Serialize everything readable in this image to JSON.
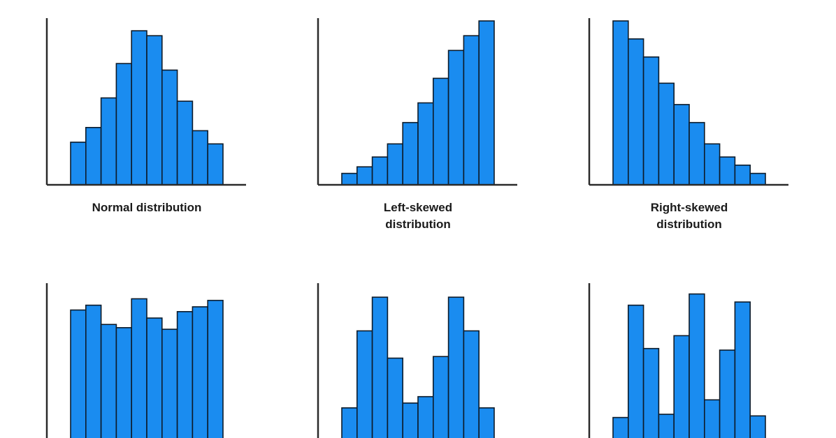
{
  "bar_color": "#1a8cf0",
  "bar_stroke": "#0d1b2a",
  "axis_color": "#2a2a2a",
  "chart_data": [
    {
      "type": "bar",
      "title_lines": [
        "Normal distribution"
      ],
      "values": [
        26,
        35,
        53,
        74,
        94,
        91,
        70,
        51,
        33,
        25
      ],
      "ylim": [
        0,
        100
      ]
    },
    {
      "type": "bar",
      "title_lines": [
        "Left-skewed",
        "distribution"
      ],
      "values": [
        7,
        11,
        17,
        25,
        38,
        50,
        65,
        82,
        91,
        100
      ],
      "ylim": [
        0,
        100
      ]
    },
    {
      "type": "bar",
      "title_lines": [
        "Right-skewed",
        "distribution"
      ],
      "values": [
        100,
        89,
        78,
        62,
        49,
        38,
        25,
        17,
        12,
        7
      ],
      "ylim": [
        0,
        100
      ]
    },
    {
      "type": "bar",
      "title_lines": [],
      "values": [
        85,
        88,
        76,
        74,
        92,
        80,
        73,
        84,
        87,
        91
      ],
      "ylim": [
        0,
        100
      ]
    },
    {
      "type": "bar",
      "title_lines": [],
      "values": [
        24,
        72,
        93,
        55,
        27,
        31,
        56,
        93,
        72,
        24
      ],
      "ylim": [
        0,
        100
      ]
    },
    {
      "type": "bar",
      "title_lines": [],
      "values": [
        18,
        88,
        61,
        20,
        69,
        95,
        29,
        60,
        90,
        19
      ],
      "ylim": [
        0,
        100
      ]
    }
  ]
}
